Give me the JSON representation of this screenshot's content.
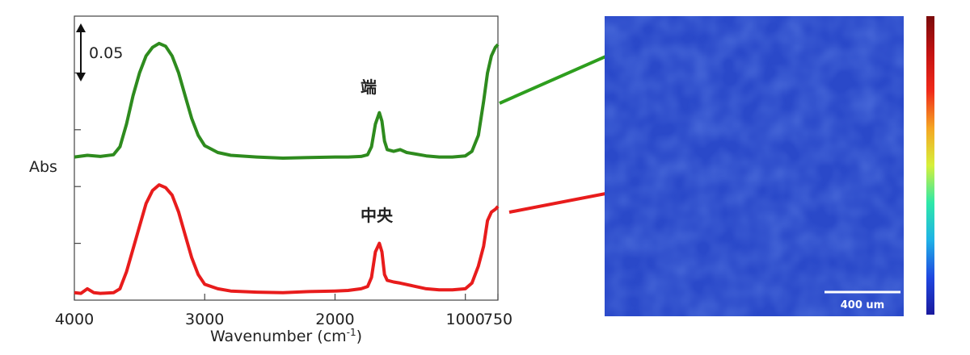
{
  "chart_data": {
    "type": "line",
    "xlabel": "Wavenumber (cm-1)",
    "xlabel_main": "Wavenumber (cm",
    "xlabel_sup": "-1",
    "xlabel_close": ")",
    "ylabel": "Abs",
    "xlim": [
      4000,
      750
    ],
    "x_reversed": true,
    "ylim": [
      0,
      0.5
    ],
    "grid": false,
    "xticks": [
      4000,
      3000,
      2000,
      1000,
      750
    ],
    "xtick_labels": [
      "4000",
      "3000",
      "2000",
      "1000",
      "750"
    ],
    "yticks": [
      0.1,
      0.2,
      0.3,
      0.4
    ],
    "scale_bar": {
      "value": 0.05,
      "label": "0.05"
    },
    "series": [
      {
        "name": "端",
        "color": "#2e8b1e",
        "points": [
          [
            4000,
            0.252
          ],
          [
            3900,
            0.255
          ],
          [
            3800,
            0.253
          ],
          [
            3700,
            0.256
          ],
          [
            3650,
            0.27
          ],
          [
            3600,
            0.31
          ],
          [
            3550,
            0.36
          ],
          [
            3500,
            0.4
          ],
          [
            3450,
            0.43
          ],
          [
            3400,
            0.445
          ],
          [
            3350,
            0.452
          ],
          [
            3300,
            0.447
          ],
          [
            3250,
            0.43
          ],
          [
            3200,
            0.4
          ],
          [
            3150,
            0.36
          ],
          [
            3100,
            0.32
          ],
          [
            3050,
            0.29
          ],
          [
            3000,
            0.272
          ],
          [
            2900,
            0.26
          ],
          [
            2800,
            0.255
          ],
          [
            2600,
            0.252
          ],
          [
            2400,
            0.25
          ],
          [
            2200,
            0.251
          ],
          [
            2000,
            0.252
          ],
          [
            1900,
            0.252
          ],
          [
            1800,
            0.253
          ],
          [
            1750,
            0.256
          ],
          [
            1720,
            0.27
          ],
          [
            1690,
            0.31
          ],
          [
            1660,
            0.33
          ],
          [
            1640,
            0.315
          ],
          [
            1620,
            0.28
          ],
          [
            1600,
            0.265
          ],
          [
            1550,
            0.262
          ],
          [
            1500,
            0.265
          ],
          [
            1450,
            0.26
          ],
          [
            1400,
            0.258
          ],
          [
            1300,
            0.254
          ],
          [
            1200,
            0.252
          ],
          [
            1100,
            0.252
          ],
          [
            1000,
            0.254
          ],
          [
            950,
            0.262
          ],
          [
            900,
            0.29
          ],
          [
            860,
            0.35
          ],
          [
            830,
            0.4
          ],
          [
            800,
            0.43
          ],
          [
            770,
            0.445
          ],
          [
            750,
            0.45
          ]
        ]
      },
      {
        "name": "中央",
        "color": "#e81c1c",
        "points": [
          [
            4000,
            0.013
          ],
          [
            3950,
            0.012
          ],
          [
            3900,
            0.02
          ],
          [
            3850,
            0.013
          ],
          [
            3800,
            0.012
          ],
          [
            3700,
            0.013
          ],
          [
            3650,
            0.02
          ],
          [
            3600,
            0.05
          ],
          [
            3550,
            0.09
          ],
          [
            3500,
            0.13
          ],
          [
            3450,
            0.17
          ],
          [
            3400,
            0.193
          ],
          [
            3350,
            0.203
          ],
          [
            3300,
            0.198
          ],
          [
            3250,
            0.185
          ],
          [
            3200,
            0.155
          ],
          [
            3150,
            0.115
          ],
          [
            3100,
            0.075
          ],
          [
            3050,
            0.045
          ],
          [
            3000,
            0.028
          ],
          [
            2900,
            0.02
          ],
          [
            2800,
            0.016
          ],
          [
            2600,
            0.014
          ],
          [
            2400,
            0.013
          ],
          [
            2200,
            0.015
          ],
          [
            2000,
            0.016
          ],
          [
            1900,
            0.017
          ],
          [
            1800,
            0.02
          ],
          [
            1750,
            0.024
          ],
          [
            1720,
            0.04
          ],
          [
            1690,
            0.085
          ],
          [
            1660,
            0.1
          ],
          [
            1640,
            0.085
          ],
          [
            1620,
            0.045
          ],
          [
            1600,
            0.035
          ],
          [
            1550,
            0.032
          ],
          [
            1500,
            0.03
          ],
          [
            1400,
            0.025
          ],
          [
            1300,
            0.02
          ],
          [
            1200,
            0.018
          ],
          [
            1100,
            0.018
          ],
          [
            1000,
            0.02
          ],
          [
            950,
            0.03
          ],
          [
            900,
            0.06
          ],
          [
            860,
            0.095
          ],
          [
            830,
            0.14
          ],
          [
            800,
            0.155
          ],
          [
            770,
            0.16
          ],
          [
            750,
            0.165
          ]
        ]
      }
    ]
  },
  "image_panel": {
    "background_color": "#2a49c9",
    "scale_bar_label": "400 um",
    "colorbar_colors": [
      "#1a1a9e",
      "#1f47e0",
      "#1fb2e6",
      "#2ee8a8",
      "#d6f03a",
      "#f5a623",
      "#f02a1a",
      "#c41212",
      "#7a0a0a"
    ]
  },
  "annotations": {
    "edge_label": "端",
    "center_label": "中央"
  }
}
